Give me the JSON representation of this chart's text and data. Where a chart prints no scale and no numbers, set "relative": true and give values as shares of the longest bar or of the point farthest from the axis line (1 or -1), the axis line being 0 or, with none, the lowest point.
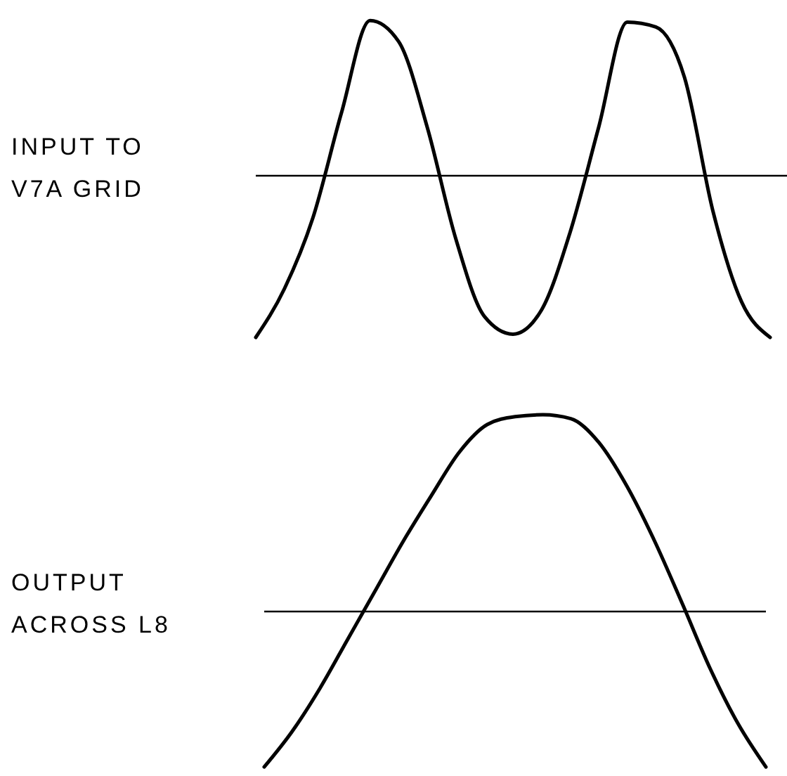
{
  "chart_data": [
    {
      "type": "line",
      "relative": true,
      "ylabel": "INPUT TO V7A GRID",
      "categories": [
        null,
        null,
        null,
        null,
        null,
        null,
        null,
        null,
        null,
        null,
        null,
        null,
        null,
        null,
        null,
        null,
        null,
        null,
        null
      ],
      "series": [
        {
          "color": "#000000",
          "values": [
            -1.0,
            -0.7,
            -0.26,
            0.39,
            0.96,
            0.83,
            0.3,
            -0.39,
            -0.87,
            -0.98,
            -0.83,
            -0.35,
            0.3,
            0.95,
            0.92,
            0.61,
            -0.22,
            -0.78,
            -1.0
          ]
        }
      ]
    },
    {
      "type": "line",
      "relative": true,
      "ylabel": "OUTPUT ACROSS L8",
      "categories": [
        null,
        null,
        null,
        null,
        null,
        null,
        null,
        null,
        null,
        null,
        null,
        null,
        null,
        null,
        null,
        null,
        null,
        null,
        null
      ],
      "series": [
        {
          "color": "#000000",
          "values": [
            -0.79,
            -0.61,
            -0.39,
            -0.14,
            0.11,
            0.36,
            0.59,
            0.81,
            0.95,
            0.99,
            1.0,
            0.98,
            0.86,
            0.64,
            0.36,
            0.04,
            -0.29,
            -0.57,
            -0.79
          ]
        }
      ]
    }
  ]
}
